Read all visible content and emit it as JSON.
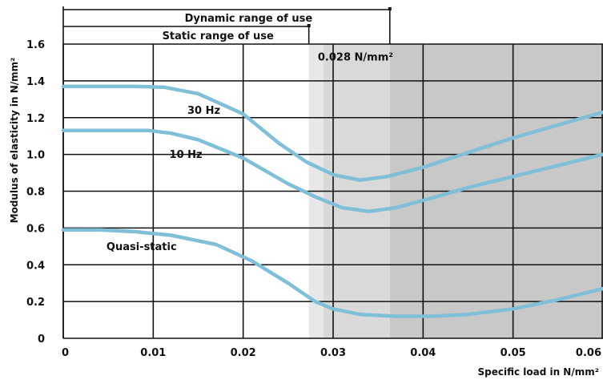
{
  "chart_data": {
    "type": "line",
    "xlabel": "Specific load in N/mm²",
    "ylabel": "Modulus of elasticity in N/mm²",
    "xlim": [
      0,
      0.06
    ],
    "ylim": [
      0,
      1.6
    ],
    "x_ticks": [
      "0",
      "0.01",
      "0.02",
      "0.03",
      "0.04",
      "0.05",
      "0.06"
    ],
    "y_ticks": [
      "0",
      "0.2",
      "0.4",
      "0.6",
      "0.8",
      "1.0",
      "1.2",
      "1.4",
      "1.6"
    ],
    "grid": true,
    "series": [
      {
        "name": "30 Hz",
        "color": "#7fbfd8",
        "points": [
          [
            0,
            1.37
          ],
          [
            0.008,
            1.37
          ],
          [
            0.0113,
            1.365
          ],
          [
            0.015,
            1.33
          ],
          [
            0.02,
            1.22
          ],
          [
            0.024,
            1.06
          ],
          [
            0.027,
            0.96
          ],
          [
            0.03,
            0.89
          ],
          [
            0.033,
            0.86
          ],
          [
            0.036,
            0.88
          ],
          [
            0.04,
            0.93
          ],
          [
            0.045,
            1.01
          ],
          [
            0.05,
            1.09
          ],
          [
            0.055,
            1.16
          ],
          [
            0.06,
            1.23
          ]
        ]
      },
      {
        "name": "10 Hz",
        "color": "#7fbfd8",
        "points": [
          [
            0,
            1.13
          ],
          [
            0.0095,
            1.13
          ],
          [
            0.012,
            1.115
          ],
          [
            0.015,
            1.08
          ],
          [
            0.02,
            0.98
          ],
          [
            0.025,
            0.84
          ],
          [
            0.028,
            0.77
          ],
          [
            0.031,
            0.71
          ],
          [
            0.034,
            0.69
          ],
          [
            0.037,
            0.71
          ],
          [
            0.04,
            0.75
          ],
          [
            0.045,
            0.82
          ],
          [
            0.05,
            0.88
          ],
          [
            0.055,
            0.94
          ],
          [
            0.06,
            1.0
          ]
        ]
      },
      {
        "name": "Quasi-static",
        "color": "#7fbfd8",
        "points": [
          [
            0,
            0.59
          ],
          [
            0.004,
            0.59
          ],
          [
            0.008,
            0.58
          ],
          [
            0.012,
            0.56
          ],
          [
            0.017,
            0.51
          ],
          [
            0.021,
            0.42
          ],
          [
            0.025,
            0.3
          ],
          [
            0.028,
            0.2
          ],
          [
            0.03,
            0.16
          ],
          [
            0.033,
            0.13
          ],
          [
            0.037,
            0.12
          ],
          [
            0.041,
            0.12
          ],
          [
            0.045,
            0.13
          ],
          [
            0.05,
            0.16
          ],
          [
            0.055,
            0.21
          ],
          [
            0.06,
            0.27
          ]
        ]
      }
    ],
    "shaded_regions": [
      {
        "from": 0.0273,
        "to": 0.0289,
        "color": "#e8e8e8"
      },
      {
        "from": 0.0289,
        "to": 0.0363,
        "color": "#d9d9d9"
      },
      {
        "from": 0.0363,
        "to": 0.06,
        "color": "#c8c8c8"
      }
    ],
    "annotations": [
      {
        "text": "30 Hz",
        "x": 0.0138,
        "y": 1.22
      },
      {
        "text": "10 Hz",
        "x": 0.0118,
        "y": 0.98
      },
      {
        "text": "Quasi-static",
        "x": 0.0048,
        "y": 0.48
      },
      {
        "text": "0.028 N/mm²",
        "x": 0.0283,
        "y": 1.51
      }
    ],
    "range_brackets": [
      {
        "label": "Dynamic range of use",
        "from": 0,
        "to": 0.0363
      },
      {
        "label": "Static range of use",
        "from": 0,
        "to": 0.0273
      }
    ]
  }
}
